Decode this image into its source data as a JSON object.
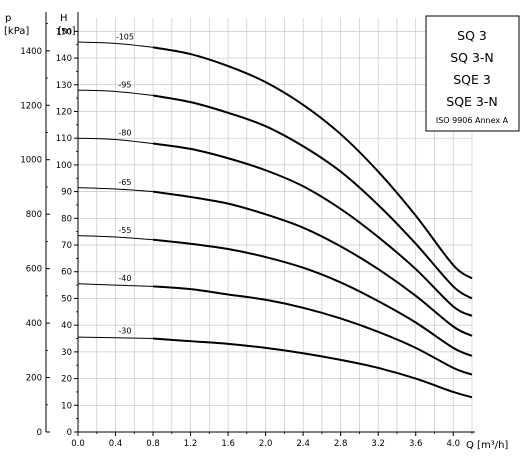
{
  "chart_data": {
    "type": "line",
    "title": "",
    "legend_box": {
      "lines": [
        "SQ 3",
        "SQ 3-N",
        "SQE 3",
        "SQE 3-N"
      ],
      "note": "ISO 9906 Annex A",
      "placement": "top-right"
    },
    "x_axis": {
      "label": "Q [m³/h]",
      "range": [
        0,
        4.2
      ],
      "ticks": [
        "0.0",
        "0.4",
        "0.8",
        "1.2",
        "1.6",
        "2.0",
        "2.4",
        "2.8",
        "3.2",
        "3.6",
        "4.0"
      ]
    },
    "y_axis_head": {
      "label_symbol": "H",
      "label_unit": "[m]",
      "range": [
        0,
        155
      ],
      "ticks": [
        "0",
        "10",
        "20",
        "30",
        "40",
        "50",
        "60",
        "70",
        "80",
        "90",
        "100",
        "110",
        "120",
        "130",
        "140",
        "150"
      ]
    },
    "y_axis_pressure": {
      "label_symbol": "p",
      "label_unit": "[kPa]",
      "ticks": [
        "0",
        "200",
        "400",
        "600",
        "800",
        "1000",
        "1200",
        "1400"
      ],
      "tick_values": [
        0,
        200,
        400,
        600,
        800,
        1000,
        1200,
        1400
      ]
    },
    "grid": true,
    "series": [
      {
        "label": "-105",
        "x": [
          0,
          0.4,
          0.8,
          1.2,
          1.6,
          2.0,
          2.4,
          2.8,
          3.2,
          3.6,
          4.0,
          4.2
        ],
        "y": [
          146,
          145.5,
          144,
          141.5,
          137,
          131,
          122.5,
          111.5,
          97.5,
          81,
          62.5,
          57.5
        ]
      },
      {
        "label": "-95",
        "x": [
          0,
          0.4,
          0.8,
          1.2,
          1.6,
          2.0,
          2.4,
          2.8,
          3.2,
          3.6,
          4.0,
          4.2
        ],
        "y": [
          128,
          127.5,
          126,
          123.5,
          119.5,
          114.5,
          107,
          97.5,
          85,
          70.5,
          54.5,
          50
        ]
      },
      {
        "label": "-80",
        "x": [
          0,
          0.4,
          0.8,
          1.2,
          1.6,
          2.0,
          2.4,
          2.8,
          3.2,
          3.6,
          4.0,
          4.2
        ],
        "y": [
          110,
          109.5,
          108,
          106,
          102.5,
          98,
          92,
          83.5,
          73,
          61,
          47,
          43.5
        ]
      },
      {
        "label": "-65",
        "x": [
          0,
          0.4,
          0.8,
          1.2,
          1.6,
          2.0,
          2.4,
          2.8,
          3.2,
          3.6,
          4.0,
          4.2
        ],
        "y": [
          91.5,
          91,
          90,
          88,
          85.5,
          81.5,
          76.5,
          69.5,
          61,
          51,
          39.5,
          36
        ]
      },
      {
        "label": "-55",
        "x": [
          0,
          0.4,
          0.8,
          1.2,
          1.6,
          2.0,
          2.4,
          2.8,
          3.2,
          3.6,
          4.0,
          4.2
        ],
        "y": [
          73.5,
          73,
          72,
          70.5,
          68.5,
          65.5,
          61.5,
          56,
          49,
          41,
          31.5,
          28.5
        ]
      },
      {
        "label": "-40",
        "x": [
          0,
          0.4,
          0.8,
          1.2,
          1.6,
          2.0,
          2.4,
          2.8,
          3.2,
          3.6,
          4.0,
          4.2
        ],
        "y": [
          55.5,
          55,
          54.5,
          53.5,
          51.5,
          49.5,
          46.5,
          42.5,
          37.5,
          31.5,
          24,
          21.5
        ]
      },
      {
        "label": "-30",
        "x": [
          0,
          0.4,
          0.8,
          1.2,
          1.6,
          2.0,
          2.4,
          2.8,
          3.2,
          3.6,
          4.0,
          4.2
        ],
        "y": [
          35.5,
          35.3,
          35,
          34,
          33,
          31.5,
          29.5,
          27,
          24,
          20,
          15,
          13
        ]
      }
    ]
  }
}
